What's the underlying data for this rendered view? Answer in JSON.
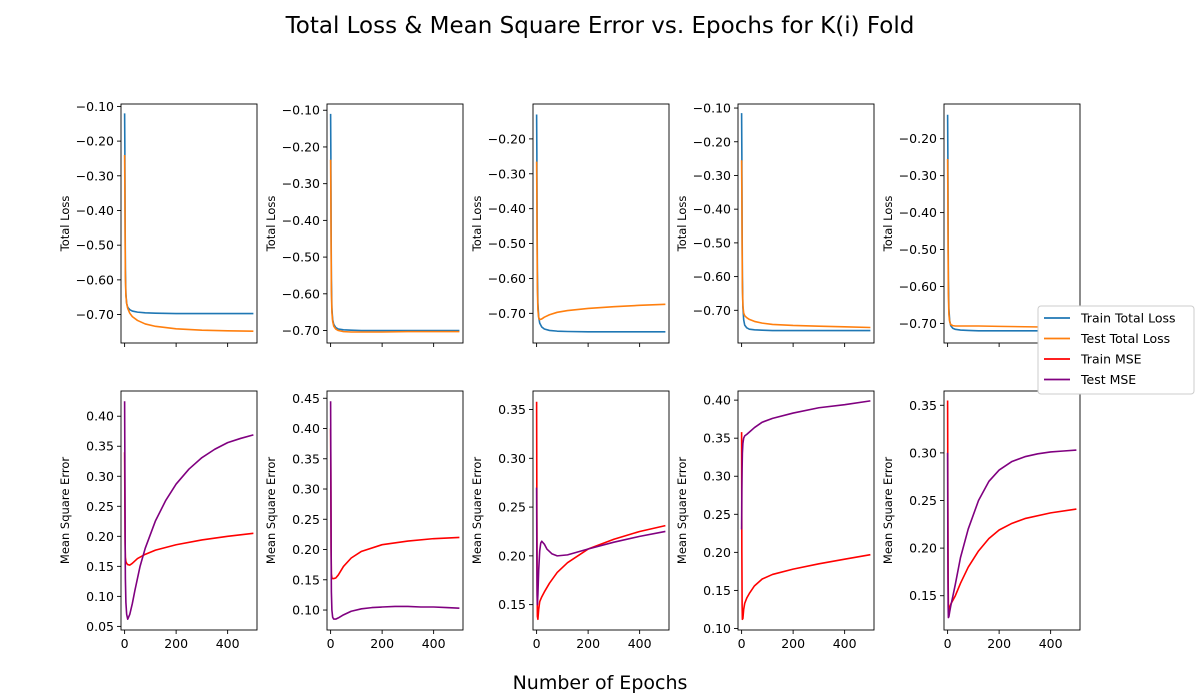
{
  "figure": {
    "title": "Total Loss & Mean Square Error vs. Epochs for K(i) Fold",
    "xlabel": "Number of Epochs"
  },
  "legend": {
    "placement": "right",
    "entries": [
      {
        "label": "Train Total Loss",
        "color": "#1f77b4"
      },
      {
        "label": "Test Total Loss",
        "color": "#ff7f0e"
      },
      {
        "label": "Train MSE",
        "color": "#ff0000"
      },
      {
        "label": "Test MSE",
        "color": "#800080"
      }
    ]
  },
  "chart_data": [
    {
      "type": "line",
      "row": 1,
      "col": 1,
      "ylabel": "Total Loss",
      "xlim": [
        -14,
        514
      ],
      "ylim": [
        -0.782,
        -0.093
      ],
      "xticks": [
        0,
        200,
        400
      ],
      "yticks": [
        -0.7,
        -0.6,
        -0.5,
        -0.4,
        -0.3,
        -0.2,
        -0.1
      ],
      "show_xtick_labels": false,
      "series": [
        {
          "name": "Train Total Loss",
          "color": "#1f77b4",
          "x": [
            0,
            1,
            2,
            3,
            5,
            8,
            12,
            20,
            30,
            50,
            80,
            120,
            200,
            300,
            400,
            500
          ],
          "y": [
            -0.12,
            -0.22,
            -0.42,
            -0.57,
            -0.64,
            -0.668,
            -0.679,
            -0.686,
            -0.69,
            -0.693,
            -0.695,
            -0.696,
            -0.697,
            -0.697,
            -0.697,
            -0.697
          ]
        },
        {
          "name": "Test Total Loss",
          "color": "#ff7f0e",
          "x": [
            0,
            1,
            2,
            3,
            5,
            8,
            12,
            20,
            30,
            50,
            80,
            120,
            200,
            300,
            400,
            500
          ],
          "y": [
            -0.24,
            -0.33,
            -0.48,
            -0.59,
            -0.645,
            -0.668,
            -0.682,
            -0.696,
            -0.706,
            -0.717,
            -0.727,
            -0.734,
            -0.741,
            -0.745,
            -0.747,
            -0.748
          ]
        }
      ]
    },
    {
      "type": "line",
      "row": 1,
      "col": 2,
      "ylabel": "Total Loss",
      "xlim": [
        -14,
        514
      ],
      "ylim": [
        -0.734,
        -0.083
      ],
      "xticks": [
        0,
        200,
        400
      ],
      "yticks": [
        -0.7,
        -0.6,
        -0.5,
        -0.4,
        -0.3,
        -0.2,
        -0.1
      ],
      "show_xtick_labels": false,
      "series": [
        {
          "name": "Train Total Loss",
          "color": "#1f77b4",
          "x": [
            0,
            1,
            2,
            3,
            5,
            8,
            12,
            20,
            30,
            50,
            80,
            120,
            200,
            300,
            400,
            500
          ],
          "y": [
            -0.11,
            -0.22,
            -0.42,
            -0.56,
            -0.64,
            -0.67,
            -0.683,
            -0.692,
            -0.696,
            -0.698,
            -0.699,
            -0.7,
            -0.7,
            -0.7,
            -0.7,
            -0.7
          ]
        },
        {
          "name": "Test Total Loss",
          "color": "#ff7f0e",
          "x": [
            0,
            1,
            2,
            3,
            5,
            8,
            12,
            20,
            30,
            50,
            80,
            120,
            200,
            300,
            400,
            500
          ],
          "y": [
            -0.235,
            -0.33,
            -0.48,
            -0.59,
            -0.65,
            -0.675,
            -0.688,
            -0.696,
            -0.7,
            -0.703,
            -0.704,
            -0.704,
            -0.704,
            -0.703,
            -0.703,
            -0.703
          ]
        }
      ]
    },
    {
      "type": "line",
      "row": 1,
      "col": 3,
      "ylabel": "Total Loss",
      "xlim": [
        -14,
        514
      ],
      "ylim": [
        -0.785,
        -0.1
      ],
      "xticks": [
        0,
        200,
        400
      ],
      "yticks": [
        -0.7,
        -0.6,
        -0.5,
        -0.4,
        -0.3,
        -0.2
      ],
      "show_xtick_labels": false,
      "series": [
        {
          "name": "Train Total Loss",
          "color": "#1f77b4",
          "x": [
            0,
            1,
            2,
            3,
            5,
            8,
            12,
            20,
            30,
            50,
            80,
            120,
            200,
            300,
            400,
            500
          ],
          "y": [
            -0.13,
            -0.24,
            -0.44,
            -0.58,
            -0.67,
            -0.71,
            -0.728,
            -0.739,
            -0.745,
            -0.749,
            -0.751,
            -0.752,
            -0.753,
            -0.753,
            -0.753,
            -0.753
          ]
        },
        {
          "name": "Test Total Loss",
          "color": "#ff7f0e",
          "x": [
            0,
            1,
            2,
            3,
            5,
            8,
            12,
            20,
            30,
            50,
            80,
            120,
            200,
            300,
            400,
            500
          ],
          "y": [
            -0.265,
            -0.36,
            -0.52,
            -0.63,
            -0.69,
            -0.712,
            -0.718,
            -0.716,
            -0.711,
            -0.704,
            -0.697,
            -0.692,
            -0.686,
            -0.681,
            -0.677,
            -0.674
          ]
        }
      ]
    },
    {
      "type": "line",
      "row": 1,
      "col": 4,
      "ylabel": "Total Loss",
      "xlim": [
        -14,
        514
      ],
      "ylim": [
        -0.797,
        -0.088
      ],
      "xticks": [
        0,
        200,
        400
      ],
      "yticks": [
        -0.7,
        -0.6,
        -0.5,
        -0.4,
        -0.3,
        -0.2,
        -0.1
      ],
      "show_xtick_labels": false,
      "series": [
        {
          "name": "Train Total Loss",
          "color": "#1f77b4",
          "x": [
            0,
            1,
            2,
            3,
            5,
            8,
            12,
            20,
            30,
            50,
            80,
            120,
            200,
            300,
            400,
            500
          ],
          "y": [
            -0.115,
            -0.24,
            -0.45,
            -0.6,
            -0.69,
            -0.728,
            -0.744,
            -0.752,
            -0.756,
            -0.758,
            -0.759,
            -0.76,
            -0.76,
            -0.76,
            -0.76,
            -0.76
          ]
        },
        {
          "name": "Test Total Loss",
          "color": "#ff7f0e",
          "x": [
            0,
            1,
            2,
            3,
            5,
            8,
            12,
            20,
            30,
            50,
            80,
            120,
            200,
            300,
            400,
            500
          ],
          "y": [
            -0.255,
            -0.36,
            -0.52,
            -0.63,
            -0.686,
            -0.708,
            -0.716,
            -0.722,
            -0.727,
            -0.733,
            -0.738,
            -0.742,
            -0.745,
            -0.747,
            -0.749,
            -0.751
          ]
        }
      ]
    },
    {
      "type": "line",
      "row": 1,
      "col": 5,
      "ylabel": "Total Loss",
      "xlim": [
        -14,
        514
      ],
      "ylim": [
        -0.753,
        -0.106
      ],
      "xticks": [
        0,
        200,
        400
      ],
      "yticks": [
        -0.7,
        -0.6,
        -0.5,
        -0.4,
        -0.3,
        -0.2
      ],
      "show_xtick_labels": false,
      "series": [
        {
          "name": "Train Total Loss",
          "color": "#1f77b4",
          "x": [
            0,
            1,
            2,
            3,
            5,
            8,
            12,
            20,
            30,
            50,
            80,
            120,
            200,
            300,
            400,
            500
          ],
          "y": [
            -0.135,
            -0.24,
            -0.44,
            -0.58,
            -0.66,
            -0.692,
            -0.706,
            -0.713,
            -0.716,
            -0.718,
            -0.719,
            -0.72,
            -0.72,
            -0.72,
            -0.72,
            -0.72
          ]
        },
        {
          "name": "Test Total Loss",
          "color": "#ff7f0e",
          "x": [
            0,
            1,
            2,
            3,
            5,
            8,
            12,
            20,
            30,
            50,
            80,
            120,
            200,
            300,
            400,
            500
          ],
          "y": [
            -0.255,
            -0.35,
            -0.51,
            -0.62,
            -0.676,
            -0.695,
            -0.703,
            -0.706,
            -0.707,
            -0.707,
            -0.707,
            -0.707,
            -0.708,
            -0.709,
            -0.71,
            -0.711
          ]
        }
      ]
    },
    {
      "type": "line",
      "row": 2,
      "col": 1,
      "ylabel": "Mean Square Error",
      "xlim": [
        -14,
        514
      ],
      "ylim": [
        0.044,
        0.442
      ],
      "xticks": [
        0,
        200,
        400
      ],
      "yticks": [
        0.05,
        0.1,
        0.15,
        0.2,
        0.25,
        0.3,
        0.35,
        0.4
      ],
      "show_xtick_labels": true,
      "series": [
        {
          "name": "Train MSE",
          "color": "#ff0000",
          "x": [
            0,
            1,
            2,
            3,
            5,
            8,
            12,
            20,
            30,
            50,
            80,
            120,
            200,
            300,
            400,
            500
          ],
          "y": [
            0.34,
            0.26,
            0.19,
            0.165,
            0.158,
            0.155,
            0.153,
            0.152,
            0.155,
            0.163,
            0.17,
            0.177,
            0.186,
            0.194,
            0.2,
            0.205
          ]
        },
        {
          "name": "Test MSE",
          "color": "#800080",
          "x": [
            0,
            1,
            2,
            3,
            5,
            8,
            12,
            20,
            30,
            40,
            60,
            80,
            120,
            160,
            200,
            250,
            300,
            350,
            400,
            450,
            500
          ],
          "y": [
            0.425,
            0.33,
            0.2,
            0.13,
            0.09,
            0.07,
            0.062,
            0.07,
            0.088,
            0.11,
            0.15,
            0.18,
            0.226,
            0.26,
            0.287,
            0.312,
            0.331,
            0.345,
            0.356,
            0.363,
            0.369
          ]
        }
      ]
    },
    {
      "type": "line",
      "row": 2,
      "col": 2,
      "ylabel": "Mean Square Error",
      "xlim": [
        -14,
        514
      ],
      "ylim": [
        0.067,
        0.462
      ],
      "xticks": [
        0,
        200,
        400
      ],
      "yticks": [
        0.1,
        0.15,
        0.2,
        0.25,
        0.3,
        0.35,
        0.4,
        0.45
      ],
      "show_xtick_labels": true,
      "series": [
        {
          "name": "Train MSE",
          "color": "#ff0000",
          "x": [
            0,
            1,
            2,
            3,
            5,
            8,
            12,
            20,
            30,
            50,
            80,
            120,
            200,
            300,
            400,
            500
          ],
          "y": [
            0.4,
            0.3,
            0.2,
            0.16,
            0.153,
            0.152,
            0.152,
            0.153,
            0.158,
            0.172,
            0.186,
            0.197,
            0.208,
            0.214,
            0.218,
            0.22
          ]
        },
        {
          "name": "Test MSE",
          "color": "#800080",
          "x": [
            0,
            1,
            2,
            3,
            5,
            8,
            12,
            20,
            30,
            50,
            80,
            120,
            160,
            200,
            250,
            300,
            350,
            400,
            450,
            500
          ],
          "y": [
            0.445,
            0.33,
            0.2,
            0.13,
            0.1,
            0.088,
            0.085,
            0.085,
            0.087,
            0.092,
            0.098,
            0.102,
            0.104,
            0.105,
            0.106,
            0.106,
            0.105,
            0.105,
            0.104,
            0.103
          ]
        }
      ]
    },
    {
      "type": "line",
      "row": 2,
      "col": 3,
      "ylabel": "Mean Square Error",
      "xlim": [
        -14,
        514
      ],
      "ylim": [
        0.124,
        0.369
      ],
      "xticks": [
        0,
        200,
        400
      ],
      "yticks": [
        0.15,
        0.2,
        0.25,
        0.3,
        0.35
      ],
      "show_xtick_labels": true,
      "series": [
        {
          "name": "Train MSE",
          "color": "#ff0000",
          "x": [
            0,
            1,
            2,
            3,
            5,
            8,
            12,
            20,
            30,
            50,
            80,
            120,
            200,
            300,
            400,
            500
          ],
          "y": [
            0.358,
            0.25,
            0.17,
            0.138,
            0.135,
            0.145,
            0.153,
            0.158,
            0.163,
            0.172,
            0.183,
            0.193,
            0.207,
            0.217,
            0.225,
            0.231
          ]
        },
        {
          "name": "Test MSE",
          "color": "#800080",
          "x": [
            0,
            1,
            2,
            3,
            5,
            8,
            12,
            16,
            20,
            30,
            40,
            60,
            80,
            120,
            200,
            300,
            400,
            500
          ],
          "y": [
            0.27,
            0.2,
            0.16,
            0.15,
            0.16,
            0.185,
            0.205,
            0.213,
            0.215,
            0.212,
            0.207,
            0.202,
            0.2,
            0.201,
            0.207,
            0.214,
            0.22,
            0.225
          ]
        }
      ]
    },
    {
      "type": "line",
      "row": 2,
      "col": 4,
      "ylabel": "Mean Square Error",
      "xlim": [
        -14,
        514
      ],
      "ylim": [
        0.098,
        0.412
      ],
      "xticks": [
        0,
        200,
        400
      ],
      "yticks": [
        0.1,
        0.15,
        0.2,
        0.25,
        0.3,
        0.35,
        0.4
      ],
      "show_xtick_labels": true,
      "series": [
        {
          "name": "Train MSE",
          "color": "#ff0000",
          "x": [
            0,
            1,
            2,
            3,
            5,
            8,
            12,
            20,
            30,
            50,
            80,
            120,
            200,
            300,
            400,
            500
          ],
          "y": [
            0.358,
            0.2,
            0.13,
            0.112,
            0.113,
            0.125,
            0.133,
            0.14,
            0.146,
            0.156,
            0.165,
            0.171,
            0.178,
            0.185,
            0.191,
            0.197
          ]
        },
        {
          "name": "Test MSE",
          "color": "#800080",
          "x": [
            0,
            1,
            2,
            3,
            5,
            8,
            12,
            20,
            30,
            50,
            80,
            120,
            200,
            300,
            400,
            500
          ],
          "y": [
            0.23,
            0.28,
            0.31,
            0.33,
            0.343,
            0.35,
            0.353,
            0.355,
            0.358,
            0.364,
            0.371,
            0.376,
            0.383,
            0.39,
            0.394,
            0.399
          ]
        }
      ]
    },
    {
      "type": "line",
      "row": 2,
      "col": 5,
      "ylabel": "Mean Square Error",
      "xlim": [
        -14,
        514
      ],
      "ylim": [
        0.114,
        0.365
      ],
      "xticks": [
        0,
        200,
        400
      ],
      "yticks": [
        0.15,
        0.2,
        0.25,
        0.3,
        0.35
      ],
      "show_xtick_labels": true,
      "series": [
        {
          "name": "Train MSE",
          "color": "#ff0000",
          "x": [
            0,
            1,
            2,
            3,
            5,
            8,
            12,
            20,
            30,
            50,
            80,
            120,
            160,
            200,
            250,
            300,
            400,
            500
          ],
          "y": [
            0.355,
            0.25,
            0.17,
            0.14,
            0.135,
            0.138,
            0.141,
            0.145,
            0.15,
            0.163,
            0.18,
            0.197,
            0.21,
            0.219,
            0.226,
            0.231,
            0.237,
            0.241
          ]
        },
        {
          "name": "Test MSE",
          "color": "#800080",
          "x": [
            0,
            1,
            2,
            3,
            5,
            8,
            12,
            20,
            30,
            50,
            80,
            120,
            160,
            200,
            250,
            300,
            350,
            400,
            450,
            500
          ],
          "y": [
            0.3,
            0.2,
            0.14,
            0.127,
            0.128,
            0.133,
            0.139,
            0.149,
            0.162,
            0.19,
            0.22,
            0.25,
            0.27,
            0.282,
            0.291,
            0.296,
            0.299,
            0.301,
            0.302,
            0.303
          ]
        }
      ]
    }
  ]
}
